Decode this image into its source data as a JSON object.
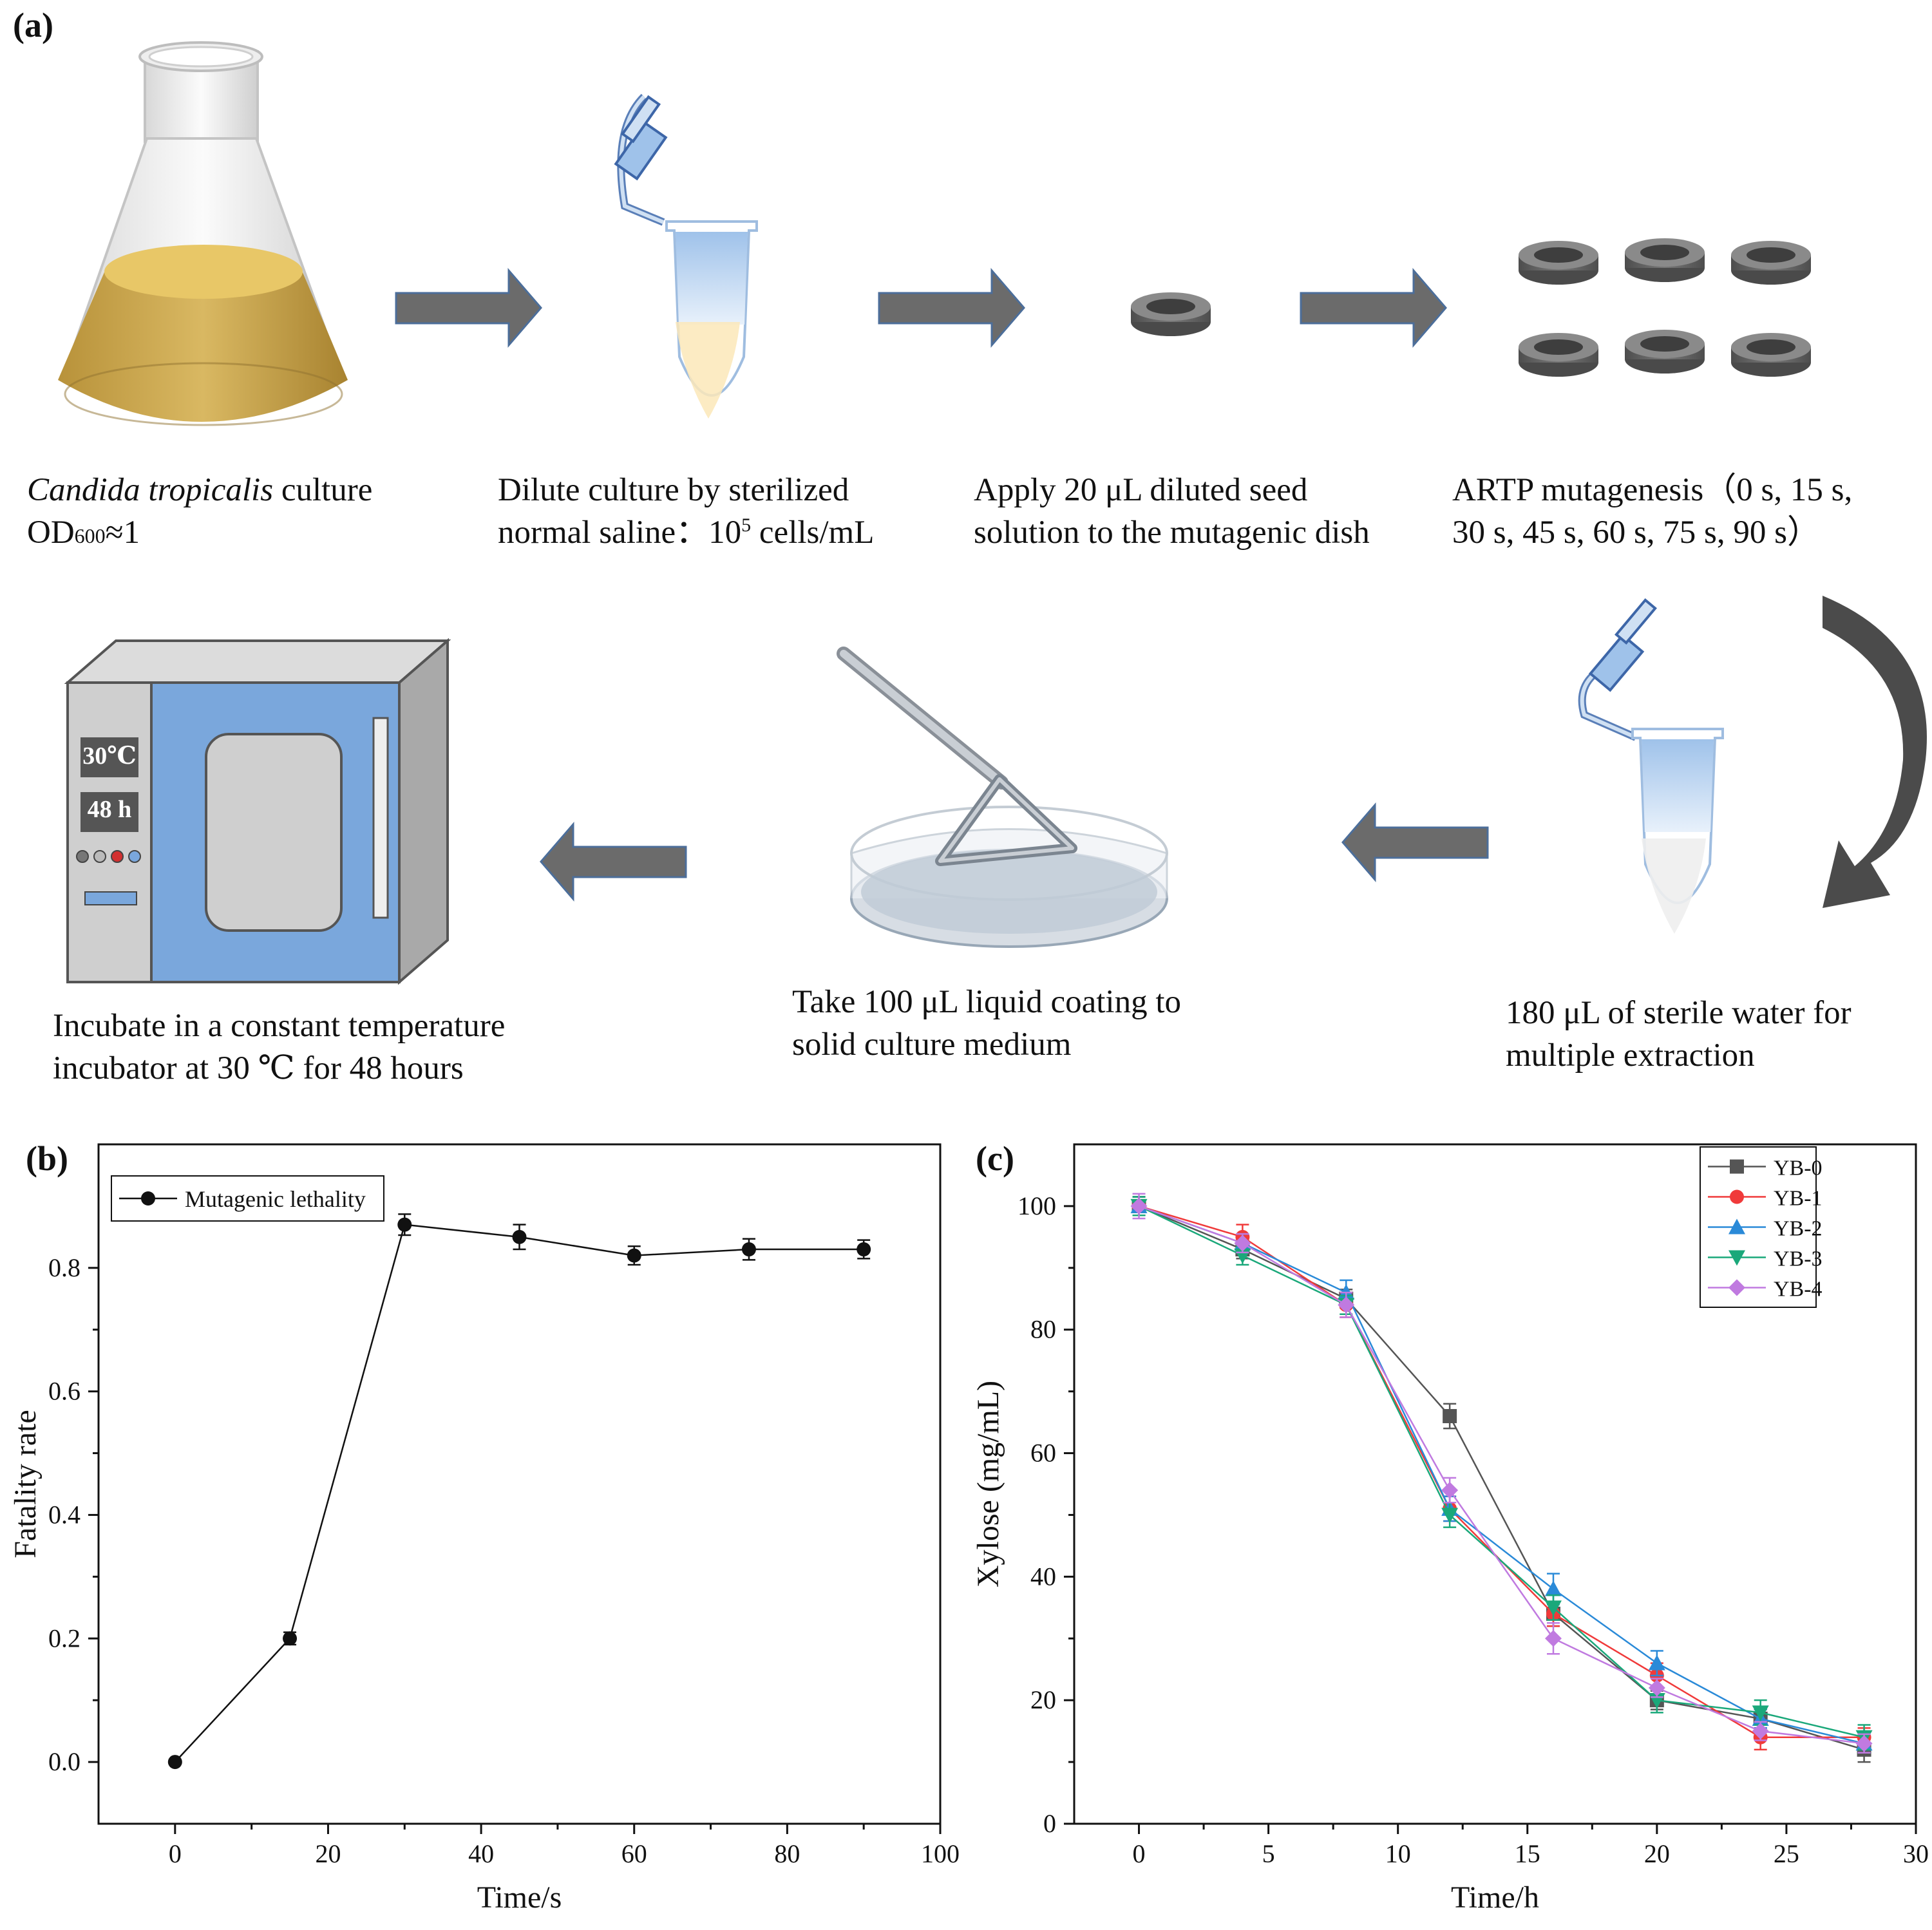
{
  "panel_a": {
    "label": "(a)",
    "step1": {
      "line1_italic": "Candida tropicalis",
      "line1_rest": " culture",
      "line2_main": "OD",
      "line2_sub": "600",
      "line2_rest": "≈1"
    },
    "step2": {
      "line1": "Dilute culture by sterilized",
      "line2_main": "normal saline：10",
      "line2_sup": "5",
      "line2_rest": " cells/mL"
    },
    "step3": {
      "line1": "Apply 20 μL diluted seed",
      "line2": "solution to the mutagenic dish"
    },
    "step4": {
      "line1": "ARTP mutagenesis（0 s, 15 s,",
      "line2": "30 s, 45 s, 60 s, 75 s, 90 s）"
    },
    "step5": {
      "line1": "180 μL of sterile water for",
      "line2": "multiple extraction"
    },
    "step6": {
      "line1": "Take 100  μL liquid coating to",
      "line2": "solid culture medium"
    },
    "step7": {
      "line1": "Incubate in a constant temperature",
      "line2": "incubator at 30 ℃ for 48 hours"
    },
    "incubator_display": {
      "temp": "30℃",
      "time": "48 h"
    },
    "colors": {
      "arrow": "#6b6b6b",
      "dish": "#5f5f5f",
      "incubator_door": "#7aa7dc",
      "culture": "#c9a64a"
    }
  },
  "chart_data": [
    {
      "panel_label": "(b)",
      "type": "line",
      "xlabel": "Time/s",
      "ylabel": "Fatality rate",
      "xlim": [
        -10,
        100
      ],
      "ylim": [
        -0.1,
        1.0
      ],
      "xticks": [
        0,
        20,
        40,
        60,
        80,
        100
      ],
      "yticks": [
        0.0,
        0.2,
        0.4,
        0.6,
        0.8
      ],
      "ytick_labels": [
        "0.0",
        "0.2",
        "0.4",
        "0.6",
        "0.8"
      ],
      "legend_position": "top-left",
      "grid": false,
      "series": [
        {
          "name": "Mutagenic lethality",
          "color": "#111111",
          "marker": "circle",
          "x": [
            0,
            15,
            30,
            45,
            60,
            75,
            90
          ],
          "y": [
            0.0,
            0.2,
            0.87,
            0.85,
            0.82,
            0.83,
            0.83
          ],
          "err": [
            0.0,
            0.01,
            0.017,
            0.02,
            0.015,
            0.017,
            0.015
          ]
        }
      ]
    },
    {
      "panel_label": "(c)",
      "type": "line",
      "xlabel": "Time/h",
      "ylabel": "Xylose (mg/mL)",
      "xlim": [
        -2.5,
        30
      ],
      "ylim": [
        0,
        110
      ],
      "xticks": [
        0,
        5,
        10,
        15,
        20,
        25,
        30
      ],
      "yticks": [
        0,
        20,
        40,
        60,
        80,
        100
      ],
      "legend_position": "top-right",
      "grid": false,
      "x": [
        0,
        4,
        8,
        12,
        16,
        20,
        24,
        28
      ],
      "series": [
        {
          "name": "YB-0",
          "color": "#555555",
          "marker": "square",
          "y": [
            100,
            93,
            85,
            66,
            34,
            20,
            17,
            12
          ],
          "err": [
            1.5,
            1.5,
            1.5,
            2,
            2,
            1.5,
            1.5,
            2
          ]
        },
        {
          "name": "YB-1",
          "color": "#f03a3a",
          "marker": "circle",
          "y": [
            100,
            95,
            84,
            51,
            34,
            24,
            14,
            14
          ],
          "err": [
            1.5,
            2,
            2,
            2,
            2,
            2,
            2,
            1.5
          ]
        },
        {
          "name": "YB-2",
          "color": "#2a8ad8",
          "marker": "triangle-up",
          "y": [
            100,
            94,
            86,
            51,
            38,
            26,
            17,
            13
          ],
          "err": [
            1.5,
            1.5,
            2,
            2,
            2.5,
            2,
            1.5,
            1.5
          ]
        },
        {
          "name": "YB-3",
          "color": "#1aa87a",
          "marker": "triangle-down",
          "y": [
            100,
            92,
            84,
            50,
            35,
            20,
            18,
            14
          ],
          "err": [
            1.5,
            1.5,
            1.5,
            2,
            2,
            2,
            2,
            2
          ]
        },
        {
          "name": "YB-4",
          "color": "#c07ae0",
          "marker": "diamond",
          "y": [
            100,
            94,
            84,
            54,
            30,
            22,
            15,
            13
          ],
          "err": [
            2,
            1.5,
            2,
            2,
            2.5,
            1.5,
            1.5,
            1.5
          ]
        }
      ]
    }
  ]
}
